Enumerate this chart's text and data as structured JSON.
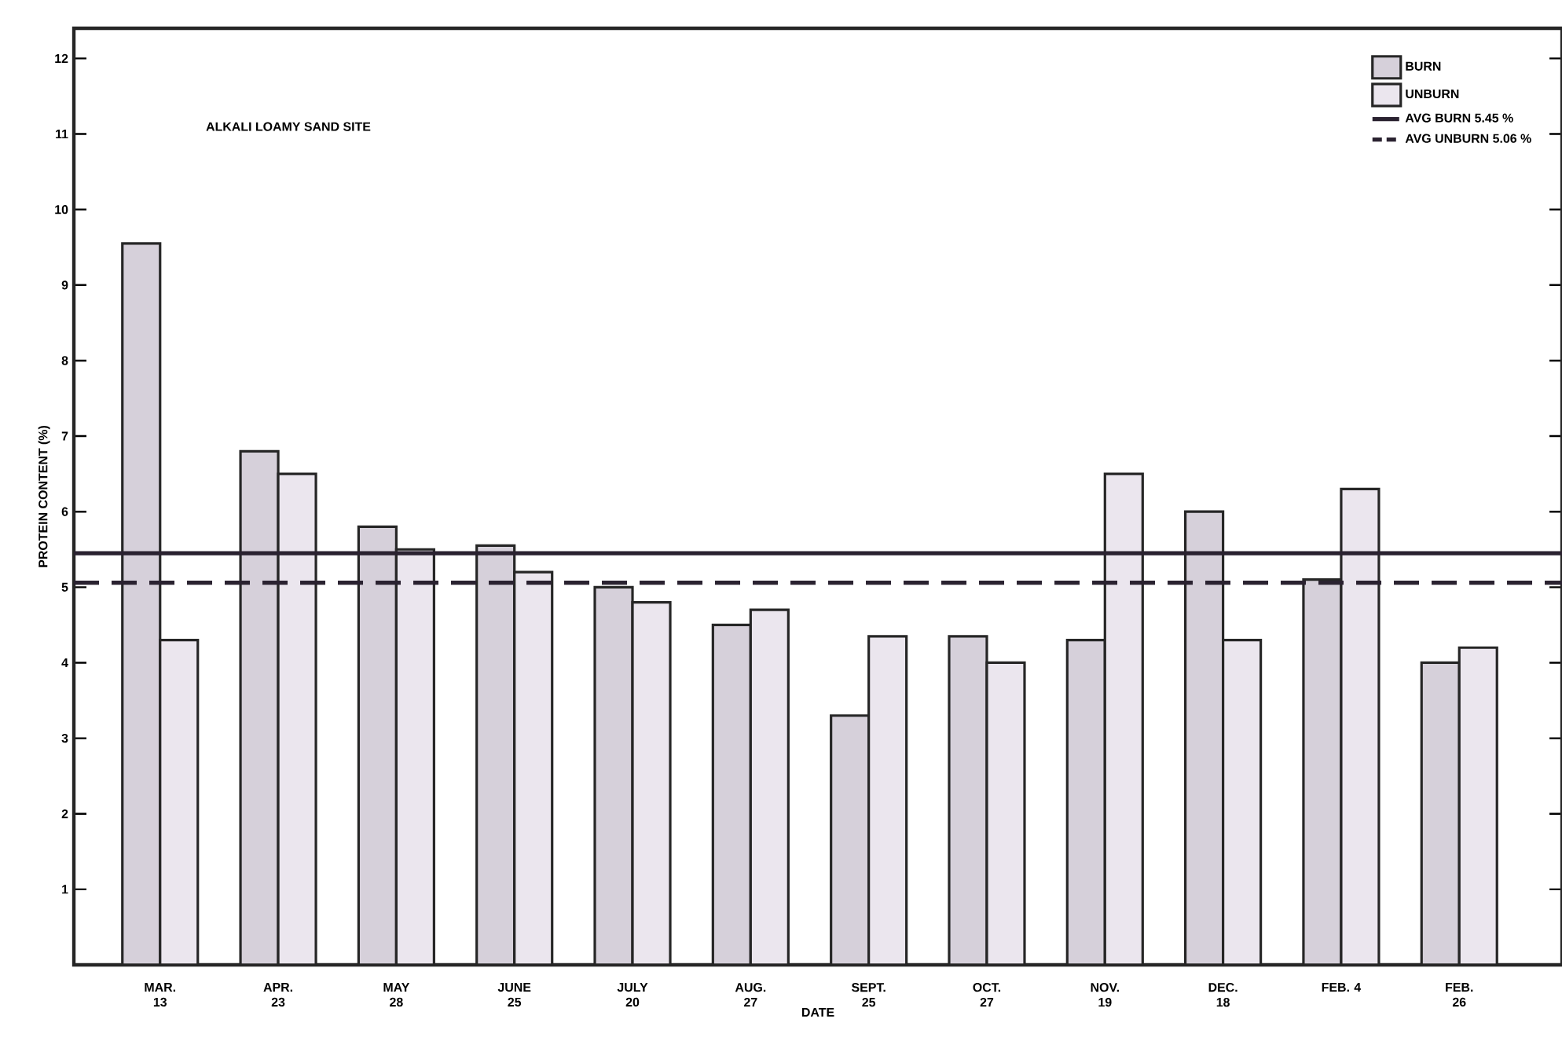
{
  "chart_data": {
    "type": "bar",
    "title": "ALKALI LOAMY SAND SITE",
    "xlabel": "DATE",
    "ylabel": "PROTEIN CONTENT (%)",
    "categories": [
      "MAR. 13",
      "APR. 23",
      "MAY 28",
      "JUNE 25",
      "JULY 20",
      "AUG. 27",
      "SEPT. 25",
      "OCT. 27",
      "NOV. 19",
      "DEC. 18",
      "FEB. 4",
      "FEB. 26"
    ],
    "series": [
      {
        "name": "BURN",
        "color": "#d6d0da",
        "values": [
          9.55,
          6.8,
          5.8,
          5.55,
          5.0,
          4.5,
          3.3,
          4.35,
          4.3,
          6.0,
          5.1,
          4.0
        ]
      },
      {
        "name": "UNBURN",
        "color": "#ebe6ee",
        "values": [
          4.3,
          6.5,
          5.5,
          5.2,
          4.8,
          4.7,
          4.35,
          4.0,
          6.5,
          4.3,
          6.3,
          4.2
        ]
      }
    ],
    "ylim": [
      0,
      12.4
    ],
    "yticks": [
      1,
      2,
      3,
      4,
      5,
      6,
      7,
      8,
      9,
      10,
      11,
      12
    ],
    "ref_lines": [
      {
        "axis": "y",
        "value": 5.45,
        "label": "AVG BURN 5.45 %",
        "color": "#2a2230",
        "line_style": "solid"
      },
      {
        "axis": "y",
        "value": 5.06,
        "label": "AVG UNBURN 5.06 %",
        "color": "#2a2230",
        "line_style": "dashed"
      }
    ],
    "legend": "top right",
    "grid": false
  }
}
